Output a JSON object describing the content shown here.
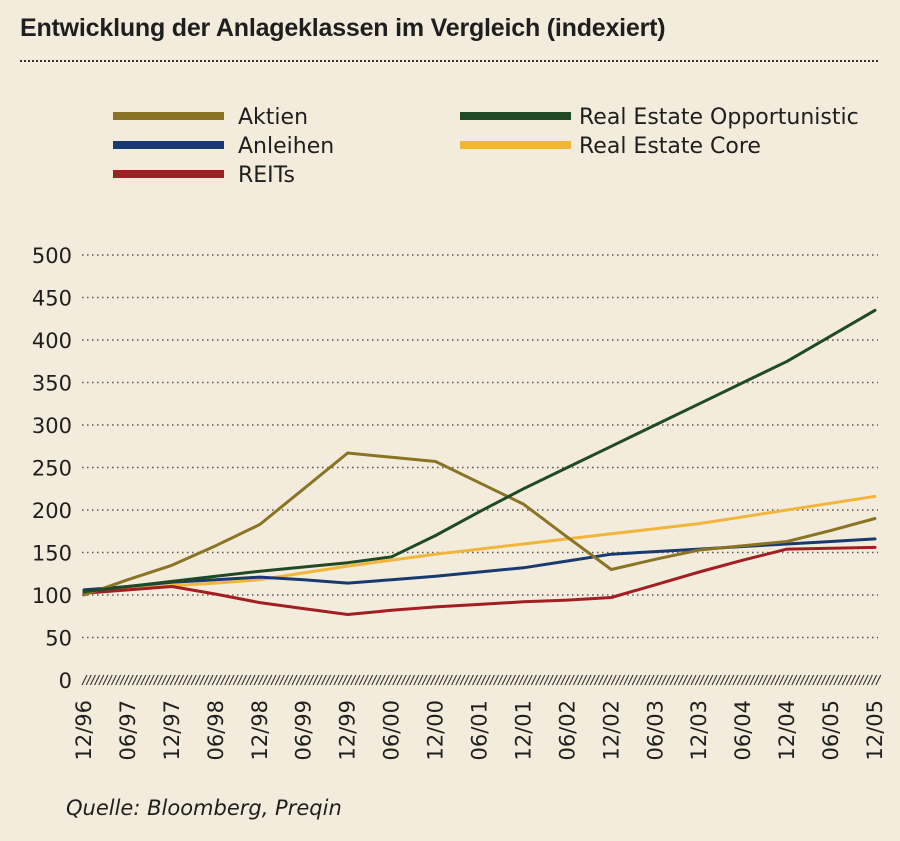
{
  "chart_data": {
    "type": "line",
    "title": "Entwicklung der Anlageklassen im Vergleich (indexiert)",
    "source": "Quelle: Bloomberg, Preqin",
    "categories": [
      "12/96",
      "06/97",
      "12/97",
      "06/98",
      "12/98",
      "06/99",
      "12/99",
      "06/00",
      "12/00",
      "06/01",
      "12/01",
      "06/02",
      "12/02",
      "06/03",
      "12/03",
      "06/04",
      "12/04",
      "06/05",
      "12/05"
    ],
    "ylim": [
      0,
      500
    ],
    "yticks": [
      0,
      50,
      100,
      150,
      200,
      250,
      300,
      350,
      400,
      450,
      500
    ],
    "grid": true,
    "legend_position": "top",
    "series": [
      {
        "name": "Aktien",
        "color": "#8a7323",
        "values": [
          100,
          118,
          135,
          158,
          183,
          225,
          267,
          262,
          257,
          232,
          207,
          168,
          130,
          142,
          153,
          158,
          163,
          176,
          190
        ]
      },
      {
        "name": "Anleihen",
        "color": "#173a70",
        "values": [
          106,
          110,
          115,
          118,
          121,
          118,
          114,
          118,
          122,
          127,
          132,
          140,
          148,
          151,
          154,
          157,
          160,
          163,
          166
        ]
      },
      {
        "name": "REITs",
        "color": "#a31e22",
        "values": [
          102,
          106,
          110,
          101,
          91,
          84,
          77,
          82,
          86,
          89,
          92,
          94,
          97,
          112,
          127,
          141,
          154,
          155,
          156
        ]
      },
      {
        "name": "Real Estate Opportunistic",
        "color": "#1f4a24",
        "values": [
          104,
          110,
          116,
          122,
          128,
          133,
          138,
          145,
          170,
          198,
          225,
          250,
          275,
          300,
          325,
          350,
          375,
          405,
          435
        ]
      },
      {
        "name": "Real Estate Core",
        "color": "#f2b53b",
        "values": [
          103,
          107,
          111,
          114,
          118,
          126,
          134,
          141,
          148,
          154,
          160,
          166,
          172,
          178,
          184,
          192,
          200,
          208,
          216
        ]
      }
    ],
    "legend": [
      {
        "name": "Aktien",
        "color": "#8a7323"
      },
      {
        "name": "Anleihen",
        "color": "#173a70"
      },
      {
        "name": "REITs",
        "color": "#a31e22"
      },
      {
        "name": "Real Estate Opportunistic",
        "color": "#1f4a24"
      },
      {
        "name": "Real Estate Core",
        "color": "#f2b53b"
      }
    ]
  }
}
